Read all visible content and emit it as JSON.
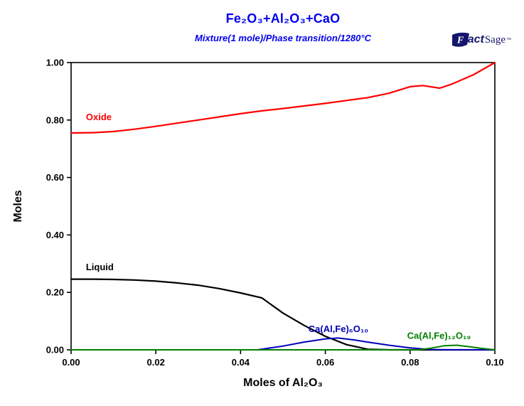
{
  "logo": {
    "f": "F",
    "act": "act",
    "sage": "Sage",
    "tm": "™"
  },
  "chart_data": {
    "type": "line",
    "title": "Fe₂O₃+Al₂O₃+CaO",
    "subtitle": "Mixture(1 mole)/Phase transition/1280°C",
    "title_color": "#0000ee",
    "xlabel": "Moles of Al₂O₃",
    "ylabel": "Moles",
    "xlim": [
      0.0,
      0.1
    ],
    "ylim": [
      0.0,
      1.0
    ],
    "xticks": [
      0.0,
      0.02,
      0.04,
      0.06,
      0.08,
      0.1
    ],
    "xtick_labels": [
      "0.00",
      "0.02",
      "0.04",
      "0.06",
      "0.08",
      "0.10"
    ],
    "yticks": [
      0.0,
      0.2,
      0.4,
      0.6,
      0.8,
      1.0
    ],
    "ytick_labels": [
      "0.00",
      "0.20",
      "0.40",
      "0.60",
      "0.80",
      "1.00"
    ],
    "grid": false,
    "legend_position": "none (inline labels)",
    "series": [
      {
        "id": "oxide",
        "name": "Oxide",
        "color": "#ff0000",
        "width": 2.2,
        "x": [
          0,
          0.005,
          0.01,
          0.015,
          0.02,
          0.025,
          0.03,
          0.035,
          0.04,
          0.045,
          0.05,
          0.055,
          0.06,
          0.065,
          0.07,
          0.075,
          0.08,
          0.083,
          0.087,
          0.09,
          0.095,
          0.1
        ],
        "y": [
          0.755,
          0.756,
          0.76,
          0.768,
          0.778,
          0.789,
          0.8,
          0.811,
          0.822,
          0.832,
          0.84,
          0.849,
          0.858,
          0.868,
          0.878,
          0.893,
          0.916,
          0.92,
          0.911,
          0.926,
          0.958,
          1.0
        ]
      },
      {
        "id": "liquid",
        "name": "Liquid",
        "color": "#000000",
        "width": 2.2,
        "x": [
          0,
          0.005,
          0.01,
          0.015,
          0.02,
          0.025,
          0.03,
          0.035,
          0.04,
          0.045,
          0.05,
          0.055,
          0.06,
          0.065,
          0.07,
          0.075,
          0.1
        ],
        "y": [
          0.246,
          0.246,
          0.245,
          0.243,
          0.239,
          0.233,
          0.225,
          0.213,
          0.198,
          0.181,
          0.128,
          0.085,
          0.047,
          0.018,
          0.002,
          0.0,
          0.0
        ]
      },
      {
        "id": "ca-al-fe-6-o-10",
        "name": "Ca(Al,Fe)₆O₁₀",
        "color": "#0000bb",
        "width": 2,
        "x": [
          0,
          0.044,
          0.05,
          0.055,
          0.06,
          0.063,
          0.067,
          0.07,
          0.075,
          0.08,
          0.085,
          0.09,
          0.1
        ],
        "y": [
          0,
          0.0,
          0.013,
          0.027,
          0.038,
          0.041,
          0.034,
          0.027,
          0.016,
          0.007,
          0.001,
          0.0,
          0.0
        ]
      },
      {
        "id": "ca-al-fe-12-o-19",
        "name": "Ca(Al,Fe)₁₂O₁₉",
        "color": "#008000",
        "width": 2,
        "x": [
          0,
          0.082,
          0.085,
          0.088,
          0.091,
          0.094,
          0.097,
          0.1
        ],
        "y": [
          0,
          0.0,
          0.006,
          0.014,
          0.016,
          0.011,
          0.005,
          0.0
        ]
      }
    ],
    "annotations": [
      {
        "id": "oxide",
        "text": "Oxide",
        "x": 0.0035,
        "y": 0.8,
        "color": "#ff0000"
      },
      {
        "id": "liquid",
        "text": "Liquid",
        "x": 0.0035,
        "y": 0.277,
        "color": "#000000"
      },
      {
        "id": "ca-al-fe-6-o-10",
        "text": "Ca(Al,Fe)₆O₁₀",
        "x": 0.056,
        "y": 0.062,
        "color": "#0000bb"
      },
      {
        "id": "ca-al-fe-12-o-19",
        "text": "Ca(Al,Fe)₁₂O₁₉",
        "x": 0.0793,
        "y": 0.038,
        "color": "#008000"
      }
    ]
  }
}
